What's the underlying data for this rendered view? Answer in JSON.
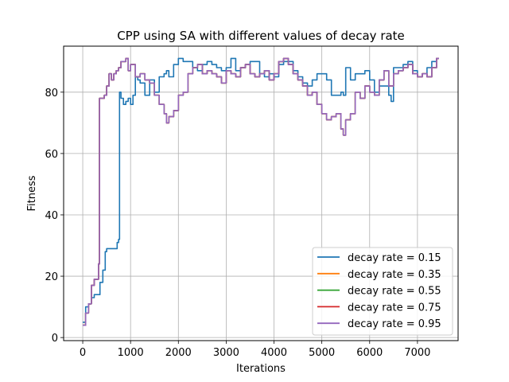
{
  "chart_data": {
    "type": "line",
    "title": "CPP using SA with different values of decay rate",
    "xlabel": "Iterations",
    "ylabel": "Fitness",
    "xlim": [
      -400,
      7850
    ],
    "ylim": [
      -1,
      95
    ],
    "xticks": [
      0,
      1000,
      2000,
      3000,
      4000,
      5000,
      6000,
      7000
    ],
    "yticks": [
      0,
      20,
      40,
      60,
      80
    ],
    "grid": true,
    "legend_position": "lower-right",
    "series": [
      {
        "name": "decay rate = 0.15",
        "color": "#1f77b4",
        "x": [
          0,
          60,
          120,
          180,
          240,
          300,
          360,
          420,
          470,
          500,
          560,
          620,
          680,
          720,
          750,
          770,
          800,
          850,
          900,
          950,
          1000,
          1050,
          1100,
          1150,
          1200,
          1300,
          1400,
          1500,
          1600,
          1700,
          1750,
          1800,
          1900,
          2000,
          2100,
          2200,
          2300,
          2400,
          2500,
          2600,
          2700,
          2800,
          2900,
          3000,
          3100,
          3200,
          3300,
          3400,
          3500,
          3600,
          3700,
          3800,
          3900,
          4000,
          4100,
          4200,
          4300,
          4400,
          4500,
          4600,
          4700,
          4800,
          4900,
          5000,
          5100,
          5200,
          5300,
          5400,
          5450,
          5500,
          5600,
          5700,
          5800,
          5900,
          6000,
          6100,
          6200,
          6300,
          6400,
          6450,
          6500,
          6600,
          6700,
          6800,
          6900,
          7000,
          7100,
          7200,
          7300,
          7400,
          7450
        ],
        "y": [
          5,
          10,
          11,
          13,
          14,
          14,
          18,
          22,
          28,
          29,
          29,
          29,
          29,
          31,
          32,
          80,
          78,
          76,
          77,
          78,
          76,
          79,
          85,
          84,
          83,
          79,
          84,
          80,
          85,
          86,
          87,
          85,
          89,
          91,
          90,
          90,
          88,
          87,
          89,
          90,
          89,
          88,
          87,
          88,
          91,
          87,
          88,
          89,
          90,
          90,
          86,
          85,
          86,
          85,
          89,
          90,
          90,
          87,
          85,
          83,
          82,
          84,
          86,
          86,
          84,
          79,
          79,
          80,
          79,
          88,
          84,
          86,
          86,
          87,
          84,
          80,
          82,
          82,
          79,
          77,
          88,
          88,
          89,
          90,
          87,
          85,
          86,
          88,
          90,
          91,
          91
        ]
      },
      {
        "name": "decay rate = 0.35",
        "color": "#ff7f0e",
        "x": [
          0,
          60,
          120,
          180,
          240,
          300,
          330,
          350,
          400,
          450,
          500,
          550,
          600,
          650,
          700,
          750,
          800,
          850,
          900,
          950,
          1000,
          1100,
          1200,
          1300,
          1400,
          1500,
          1600,
          1700,
          1750,
          1800,
          1900,
          2000,
          2100,
          2200,
          2300,
          2400,
          2500,
          2600,
          2700,
          2800,
          2900,
          3000,
          3100,
          3200,
          3300,
          3400,
          3500,
          3600,
          3700,
          3800,
          3900,
          4000,
          4100,
          4200,
          4300,
          4400,
          4500,
          4600,
          4700,
          4800,
          4900,
          5000,
          5100,
          5200,
          5300,
          5400,
          5450,
          5500,
          5600,
          5700,
          5800,
          5900,
          6000,
          6100,
          6200,
          6300,
          6400,
          6500,
          6600,
          6700,
          6800,
          6900,
          7000,
          7100,
          7200,
          7300,
          7400,
          7450
        ],
        "y": [
          4,
          8,
          11,
          17,
          19,
          19,
          24,
          78,
          78,
          79,
          82,
          86,
          84,
          86,
          87,
          88,
          90,
          90,
          91,
          87,
          89,
          85,
          86,
          84,
          83,
          79,
          76,
          73,
          70,
          72,
          74,
          79,
          80,
          86,
          88,
          89,
          86,
          87,
          86,
          85,
          83,
          87,
          86,
          85,
          88,
          89,
          86,
          85,
          86,
          87,
          84,
          86,
          90,
          91,
          89,
          86,
          84,
          82,
          79,
          80,
          76,
          73,
          71,
          72,
          73,
          68,
          66,
          71,
          73,
          80,
          78,
          82,
          80,
          79,
          84,
          87,
          82,
          86,
          87,
          88,
          89,
          86,
          85,
          86,
          85,
          88,
          91,
          91
        ]
      },
      {
        "name": "decay rate = 0.55",
        "color": "#2ca02c",
        "x": [
          0,
          60,
          120,
          180,
          240,
          300,
          330,
          350,
          400,
          450,
          500,
          550,
          600,
          650,
          700,
          750,
          800,
          850,
          900,
          950,
          1000,
          1100,
          1200,
          1300,
          1400,
          1500,
          1600,
          1700,
          1750,
          1800,
          1900,
          2000,
          2100,
          2200,
          2300,
          2400,
          2500,
          2600,
          2700,
          2800,
          2900,
          3000,
          3100,
          3200,
          3300,
          3400,
          3500,
          3600,
          3700,
          3800,
          3900,
          4000,
          4100,
          4200,
          4300,
          4400,
          4500,
          4600,
          4700,
          4800,
          4900,
          5000,
          5100,
          5200,
          5300,
          5400,
          5450,
          5500,
          5600,
          5700,
          5800,
          5900,
          6000,
          6100,
          6200,
          6300,
          6400,
          6500,
          6600,
          6700,
          6800,
          6900,
          7000,
          7100,
          7200,
          7300,
          7400,
          7450
        ],
        "y": [
          4,
          8,
          11,
          17,
          19,
          19,
          24,
          78,
          78,
          79,
          82,
          86,
          84,
          86,
          87,
          88,
          90,
          90,
          91,
          87,
          89,
          85,
          86,
          84,
          83,
          79,
          76,
          73,
          70,
          72,
          74,
          79,
          80,
          86,
          88,
          89,
          86,
          87,
          86,
          85,
          83,
          87,
          86,
          85,
          88,
          89,
          86,
          85,
          86,
          87,
          84,
          86,
          90,
          91,
          89,
          86,
          84,
          82,
          79,
          80,
          76,
          73,
          71,
          72,
          73,
          68,
          66,
          71,
          73,
          80,
          78,
          82,
          80,
          79,
          84,
          87,
          82,
          86,
          87,
          88,
          89,
          86,
          85,
          86,
          85,
          88,
          91,
          91
        ]
      },
      {
        "name": "decay rate = 0.75",
        "color": "#d62728",
        "x": [
          0,
          60,
          120,
          180,
          240,
          300,
          330,
          350,
          400,
          450,
          500,
          550,
          600,
          650,
          700,
          750,
          800,
          850,
          900,
          950,
          1000,
          1100,
          1200,
          1300,
          1400,
          1500,
          1600,
          1700,
          1750,
          1800,
          1900,
          2000,
          2100,
          2200,
          2300,
          2400,
          2500,
          2600,
          2700,
          2800,
          2900,
          3000,
          3100,
          3200,
          3300,
          3400,
          3500,
          3600,
          3700,
          3800,
          3900,
          4000,
          4100,
          4200,
          4300,
          4400,
          4500,
          4600,
          4700,
          4800,
          4900,
          5000,
          5100,
          5200,
          5300,
          5400,
          5450,
          5500,
          5600,
          5700,
          5800,
          5900,
          6000,
          6100,
          6200,
          6300,
          6400,
          6500,
          6600,
          6700,
          6800,
          6900,
          7000,
          7100,
          7200,
          7300,
          7400,
          7450
        ],
        "y": [
          4,
          8,
          11,
          17,
          19,
          19,
          24,
          78,
          78,
          79,
          82,
          86,
          84,
          86,
          87,
          88,
          90,
          90,
          91,
          87,
          89,
          85,
          86,
          84,
          83,
          79,
          76,
          73,
          70,
          72,
          74,
          79,
          80,
          86,
          88,
          89,
          86,
          87,
          86,
          85,
          83,
          87,
          86,
          85,
          88,
          89,
          86,
          85,
          86,
          87,
          84,
          86,
          90,
          91,
          89,
          86,
          84,
          82,
          79,
          80,
          76,
          73,
          71,
          72,
          73,
          68,
          66,
          71,
          73,
          80,
          78,
          82,
          80,
          79,
          84,
          87,
          82,
          86,
          87,
          88,
          89,
          86,
          85,
          86,
          85,
          88,
          91,
          91
        ]
      },
      {
        "name": "decay rate = 0.95",
        "color": "#9467bd",
        "x": [
          0,
          60,
          120,
          180,
          240,
          300,
          330,
          350,
          400,
          450,
          500,
          550,
          600,
          650,
          700,
          750,
          800,
          850,
          900,
          950,
          1000,
          1100,
          1200,
          1300,
          1400,
          1500,
          1600,
          1700,
          1750,
          1800,
          1900,
          2000,
          2100,
          2200,
          2300,
          2400,
          2500,
          2600,
          2700,
          2800,
          2900,
          3000,
          3100,
          3200,
          3300,
          3400,
          3500,
          3600,
          3700,
          3800,
          3900,
          4000,
          4100,
          4200,
          4300,
          4400,
          4500,
          4600,
          4700,
          4800,
          4900,
          5000,
          5100,
          5200,
          5300,
          5400,
          5450,
          5500,
          5600,
          5700,
          5800,
          5900,
          6000,
          6100,
          6200,
          6300,
          6400,
          6500,
          6600,
          6700,
          6800,
          6900,
          7000,
          7100,
          7200,
          7300,
          7400,
          7450
        ],
        "y": [
          4,
          8,
          11,
          17,
          19,
          19,
          24,
          78,
          78,
          79,
          82,
          86,
          84,
          86,
          87,
          88,
          90,
          90,
          91,
          87,
          89,
          85,
          86,
          84,
          83,
          79,
          76,
          73,
          70,
          72,
          74,
          79,
          80,
          86,
          88,
          89,
          86,
          87,
          86,
          85,
          83,
          87,
          86,
          85,
          88,
          89,
          86,
          85,
          86,
          87,
          84,
          86,
          90,
          91,
          89,
          86,
          84,
          82,
          79,
          80,
          76,
          73,
          71,
          72,
          73,
          68,
          66,
          71,
          73,
          80,
          78,
          82,
          80,
          79,
          84,
          87,
          82,
          86,
          87,
          88,
          89,
          86,
          85,
          86,
          85,
          88,
          91,
          91
        ]
      }
    ]
  }
}
